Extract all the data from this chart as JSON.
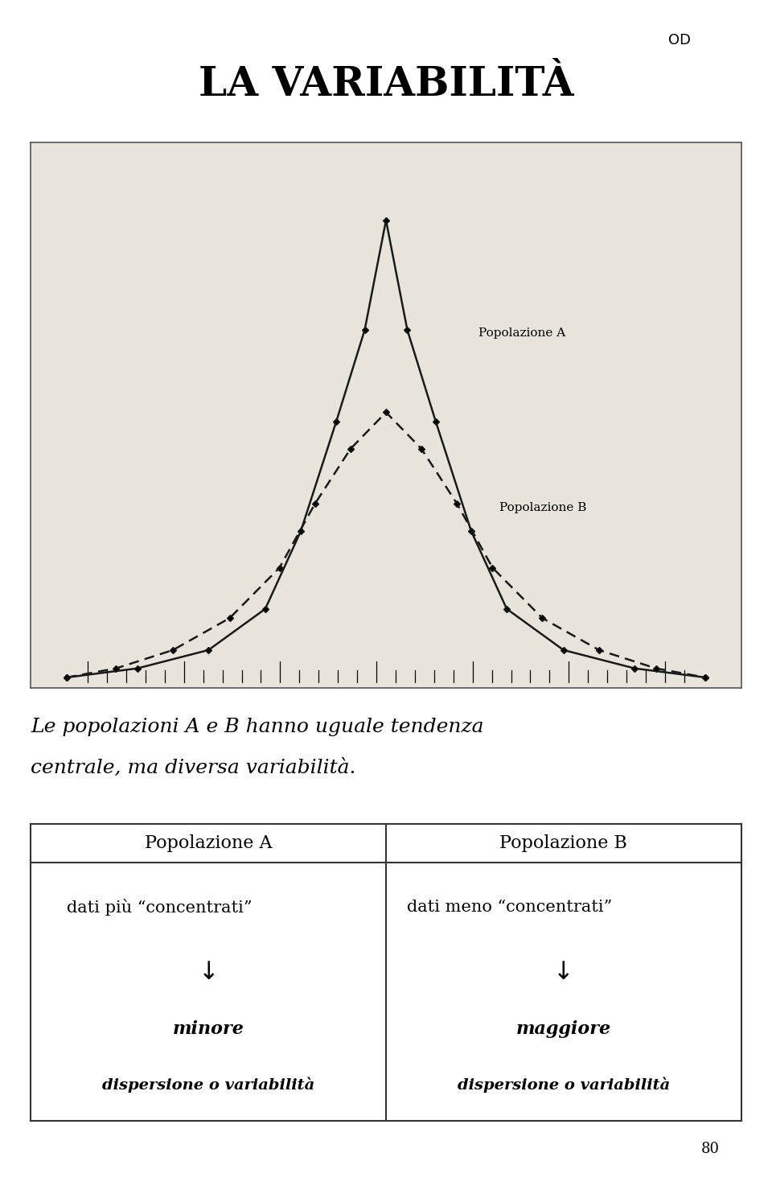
{
  "title": "LA VARIABILITÀ",
  "title_fontsize": 36,
  "od_label": "OD",
  "page_number": "80",
  "paragraph_line1": "Le popolazioni A e B hanno uguale tendenza",
  "paragraph_line2": "centrale, ma diversa variabilità.",
  "pop_A_label": "Popolazione A",
  "pop_B_label": "Popolazione B",
  "table_col1_header": "Popolazione A",
  "table_col2_header": "Popolazione B",
  "table_col1_line1": "dati più “concentrati”",
  "table_col1_arrow": "↓",
  "table_col1_line2": "minore",
  "table_col1_line3": "dispersione o variabilità",
  "table_col2_line1": "dati meno “concentrati”",
  "table_col2_arrow": "↓",
  "table_col2_line2": "maggiore",
  "table_col2_line3": "dispersione o variabilità",
  "bg_color": "#ffffff",
  "chart_bg": "#e8e4dc",
  "text_color": "#000000",
  "line_color_A": "#1a1a1a",
  "line_color_B": "#1a1a1a"
}
